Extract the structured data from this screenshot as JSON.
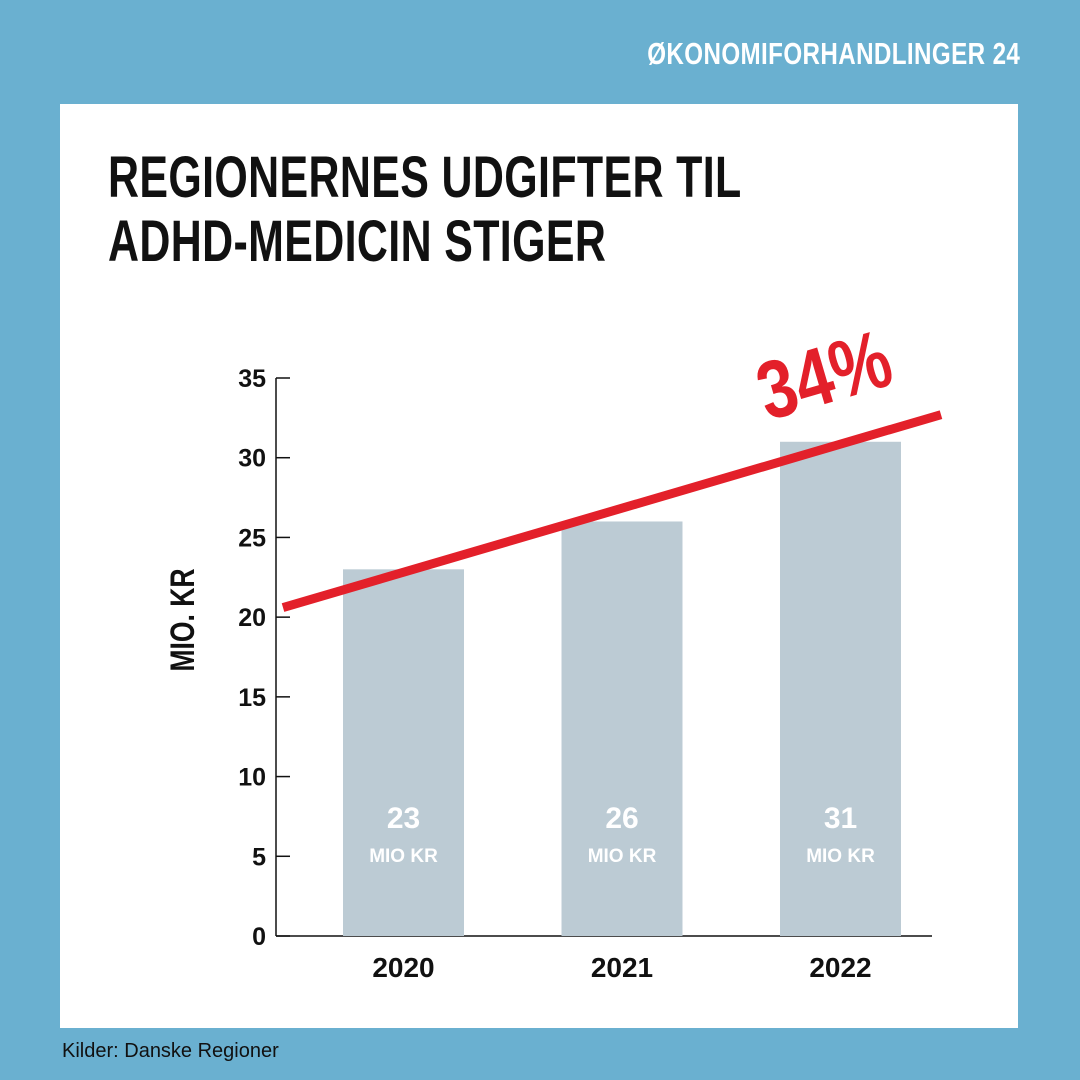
{
  "series_tag": "ØKONOMIFORHANDLINGER 24",
  "source": "Kilder: Danske Regioner",
  "colors": {
    "background": "#6ab0d0",
    "card": "#ffffff",
    "bar": "#bccbd4",
    "trend": "#e3202a",
    "text": "#111111"
  },
  "chart_data": {
    "type": "bar",
    "title_lines": [
      "REGIONERNES UDGIFTER TIL",
      "ADHD-MEDICIN STIGER"
    ],
    "categories": [
      "2020",
      "2021",
      "2022"
    ],
    "values": [
      23,
      26,
      31
    ],
    "value_unit_label": "MIO KR",
    "ylabel": "MIO. KR",
    "xlabel": "",
    "ylim": [
      0,
      35
    ],
    "yticks": [
      0,
      5,
      10,
      15,
      20,
      25,
      30,
      35
    ],
    "grid": false,
    "trend_line": {
      "label": "34%",
      "from_value": 20.6,
      "to_value": 32.7
    }
  }
}
